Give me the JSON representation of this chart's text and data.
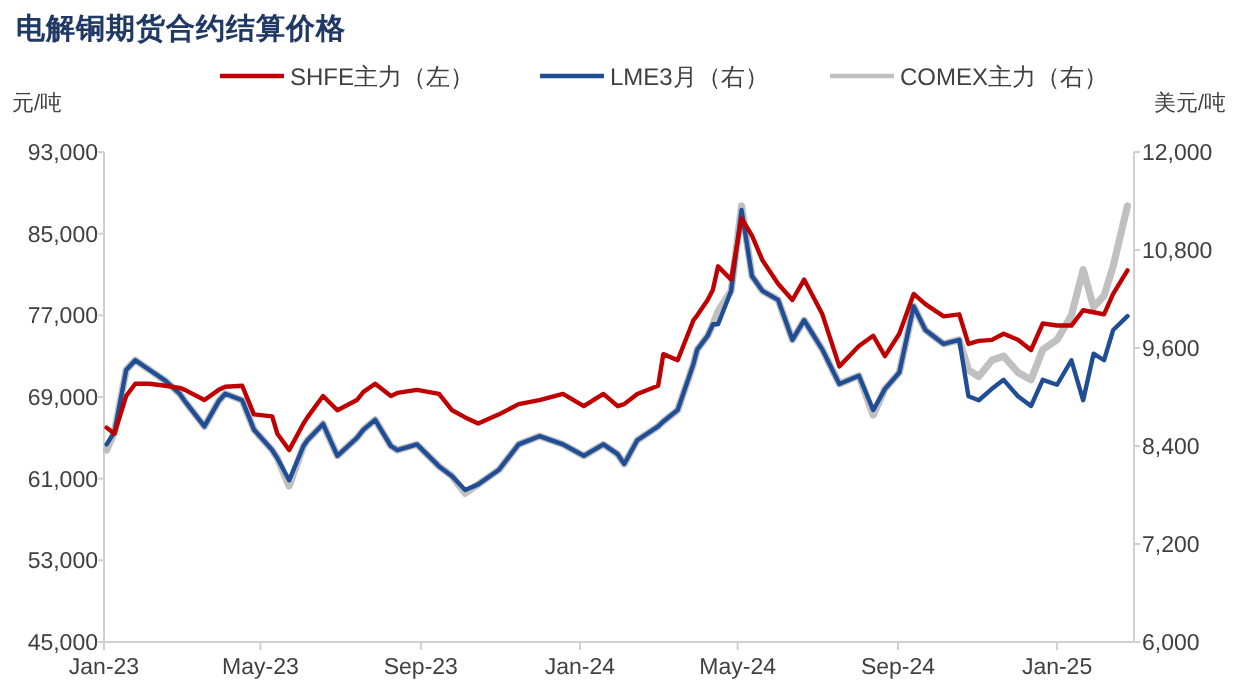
{
  "chart_data": {
    "type": "line",
    "title": "电解铜期货合约结算价格",
    "ylabel": "元/吨",
    "y2label": "美元/吨",
    "legend": "top",
    "xlim": [
      "2023-01-01",
      "2025-03-01"
    ],
    "xticks": [
      {
        "value": "2023-01-01",
        "label": "Jan-23"
      },
      {
        "value": "2023-05-01",
        "label": "May-23"
      },
      {
        "value": "2023-09-01",
        "label": "Sep-23"
      },
      {
        "value": "2024-01-01",
        "label": "Jan-24"
      },
      {
        "value": "2024-05-01",
        "label": "May-24"
      },
      {
        "value": "2024-09-01",
        "label": "Sep-24"
      },
      {
        "value": "2025-01-01",
        "label": "Jan-25"
      }
    ],
    "ylim": [
      45000,
      93000
    ],
    "yticks": [
      {
        "value": 45000,
        "label": "45,000"
      },
      {
        "value": 53000,
        "label": "53,000"
      },
      {
        "value": 61000,
        "label": "61,000"
      },
      {
        "value": 69000,
        "label": "69,000"
      },
      {
        "value": 77000,
        "label": "77,000"
      },
      {
        "value": 85000,
        "label": "85,000"
      },
      {
        "value": 93000,
        "label": "93,000"
      }
    ],
    "y2lim": [
      6000,
      12000
    ],
    "y2ticks": [
      {
        "value": 6000,
        "label": "6,000"
      },
      {
        "value": 7200,
        "label": "7,200"
      },
      {
        "value": 8400,
        "label": "8,400"
      },
      {
        "value": 9600,
        "label": "9,600"
      },
      {
        "value": 10800,
        "label": "10,800"
      },
      {
        "value": 12000,
        "label": "12,000"
      }
    ],
    "x": [
      "2023-01-03",
      "2023-01-09",
      "2023-01-18",
      "2023-01-25",
      "2023-02-05",
      "2023-02-17",
      "2023-02-28",
      "2023-03-04",
      "2023-03-19",
      "2023-03-30",
      "2023-04-04",
      "2023-04-17",
      "2023-04-26",
      "2023-05-10",
      "2023-05-14",
      "2023-05-23",
      "2023-06-03",
      "2023-06-06",
      "2023-06-18",
      "2023-06-29",
      "2023-07-14",
      "2023-07-19",
      "2023-07-28",
      "2023-08-09",
      "2023-08-14",
      "2023-08-29",
      "2023-09-15",
      "2023-09-25",
      "2023-10-05",
      "2023-10-15",
      "2023-10-31",
      "2023-11-15",
      "2023-12-01",
      "2023-12-19",
      "2024-01-04",
      "2024-01-19",
      "2024-01-30",
      "2024-02-04",
      "2024-02-14",
      "2024-03-01",
      "2024-03-05",
      "2024-03-16",
      "2024-03-28",
      "2024-03-31",
      "2024-04-08",
      "2024-04-12",
      "2024-04-16",
      "2024-04-26",
      "2024-05-04",
      "2024-05-12",
      "2024-05-20",
      "2024-06-01",
      "2024-06-12",
      "2024-06-21",
      "2024-07-05",
      "2024-07-18",
      "2024-08-02",
      "2024-08-13",
      "2024-08-22",
      "2024-09-02",
      "2024-09-13",
      "2024-09-22",
      "2024-10-06",
      "2024-10-18",
      "2024-10-25",
      "2024-11-02",
      "2024-11-12",
      "2024-11-21",
      "2024-12-02",
      "2024-12-12",
      "2024-12-21",
      "2025-01-01",
      "2025-01-12",
      "2025-01-21",
      "2025-01-29",
      "2025-02-06",
      "2025-02-13",
      "2025-02-24"
    ],
    "series": [
      {
        "name": "SHFE主力（左）",
        "color": "#c00000",
        "values": [
          66000,
          65400,
          69100,
          70300,
          70300,
          70100,
          69900,
          69700,
          68700,
          69700,
          70000,
          70100,
          67300,
          67100,
          65400,
          63800,
          66400,
          67000,
          69100,
          67700,
          68700,
          69500,
          70300,
          69100,
          69400,
          69700,
          69300,
          67700,
          67000,
          66400,
          67300,
          68300,
          68700,
          69300,
          68100,
          69300,
          68100,
          68300,
          69300,
          70100,
          73200,
          72600,
          76500,
          77000,
          78500,
          79500,
          81800,
          80500,
          86500,
          84800,
          82400,
          80100,
          78500,
          80500,
          77100,
          72000,
          74000,
          75000,
          73000,
          75200,
          79100,
          78100,
          76900,
          77100,
          74200,
          74500,
          74600,
          75200,
          74600,
          73600,
          76200,
          76000,
          76000,
          77500,
          77300,
          77100,
          79100,
          81400
        ]
      },
      {
        "name": "LME3月（右）",
        "color": "#1f4e96",
        "axis": "y2",
        "values": [
          8420,
          8570,
          9330,
          9450,
          9330,
          9200,
          9040,
          8950,
          8640,
          8950,
          9040,
          8960,
          8600,
          8350,
          8250,
          7980,
          8400,
          8470,
          8670,
          8280,
          8500,
          8600,
          8720,
          8400,
          8350,
          8420,
          8150,
          8030,
          7860,
          7930,
          8110,
          8420,
          8520,
          8420,
          8280,
          8420,
          8300,
          8180,
          8470,
          8640,
          8700,
          8840,
          9400,
          9580,
          9750,
          9890,
          9890,
          10300,
          11290,
          10480,
          10300,
          10190,
          9700,
          9940,
          9580,
          9160,
          9260,
          8840,
          9100,
          9300,
          10110,
          9820,
          9650,
          9700,
          9010,
          8960,
          9100,
          9210,
          9010,
          8890,
          9210,
          9150,
          9450,
          8960,
          9530,
          9450,
          9820,
          9990
        ]
      },
      {
        "name": "COMEX主力（右）",
        "color": "#c0c0c0",
        "axis": "y2",
        "values": [
          8350,
          8570,
          9330,
          9450,
          9330,
          9200,
          9040,
          8950,
          8640,
          8950,
          9040,
          8960,
          8600,
          8350,
          8250,
          7910,
          8400,
          8470,
          8670,
          8280,
          8500,
          8600,
          8720,
          8400,
          8350,
          8420,
          8150,
          8030,
          7820,
          7930,
          8110,
          8420,
          8520,
          8420,
          8280,
          8420,
          8300,
          8180,
          8470,
          8640,
          8700,
          8840,
          9400,
          9580,
          9750,
          9890,
          10050,
          10300,
          11340,
          10480,
          10300,
          10190,
          9700,
          9940,
          9580,
          9160,
          9260,
          8780,
          9100,
          9300,
          10110,
          9820,
          9650,
          9700,
          9330,
          9250,
          9450,
          9500,
          9300,
          9210,
          9580,
          9700,
          10000,
          10560,
          10100,
          10240,
          10600,
          11340
        ]
      }
    ]
  }
}
